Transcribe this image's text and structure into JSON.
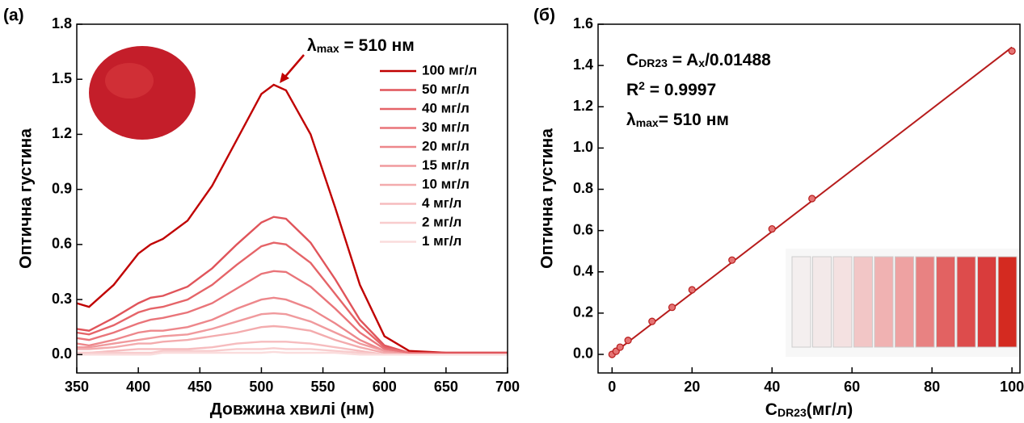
{
  "chart_data": [
    {
      "type": "line",
      "panel": "(a)",
      "xlabel": "Довжина хвилі (нм)",
      "ylabel": "Оптична густина",
      "x": [
        350,
        360,
        380,
        400,
        410,
        420,
        440,
        460,
        480,
        500,
        510,
        520,
        540,
        560,
        580,
        600,
        620,
        650,
        700
      ],
      "xlim": [
        350,
        700
      ],
      "xticks": [
        350,
        400,
        450,
        500,
        550,
        600,
        650,
        700
      ],
      "ylim": [
        -0.1,
        1.8
      ],
      "yticks": [
        {
          "value": 0,
          "label": "0.0"
        },
        0.3,
        0.6,
        0.9,
        1.2,
        1.5,
        1.8
      ],
      "annotation": [
        "λ",
        "max",
        " = 510 нм"
      ],
      "annotation_color": "#c00000",
      "series": [
        {
          "name": "100 мг/л",
          "color": "#c00000",
          "values": [
            0.28,
            0.26,
            0.38,
            0.55,
            0.6,
            0.63,
            0.73,
            0.92,
            1.17,
            1.42,
            1.47,
            1.44,
            1.2,
            0.8,
            0.38,
            0.1,
            0.02,
            0.01,
            0.01
          ]
        },
        {
          "name": "50 мг/л",
          "color": "#e0545a",
          "values": [
            0.14,
            0.13,
            0.2,
            0.28,
            0.31,
            0.32,
            0.37,
            0.47,
            0.6,
            0.72,
            0.75,
            0.74,
            0.61,
            0.41,
            0.19,
            0.05,
            0.01,
            0.01,
            0.01
          ]
        },
        {
          "name": "40 мг/л",
          "color": "#e56468",
          "values": [
            0.12,
            0.11,
            0.16,
            0.23,
            0.25,
            0.26,
            0.3,
            0.38,
            0.49,
            0.59,
            0.61,
            0.6,
            0.5,
            0.33,
            0.16,
            0.04,
            0.01,
            0,
            0
          ]
        },
        {
          "name": "30 мг/л",
          "color": "#e97479",
          "values": [
            0.09,
            0.08,
            0.12,
            0.17,
            0.19,
            0.2,
            0.23,
            0.28,
            0.36,
            0.44,
            0.455,
            0.45,
            0.37,
            0.25,
            0.12,
            0.03,
            0.01,
            0,
            0
          ]
        },
        {
          "name": "20 мг/л",
          "color": "#ed878b",
          "values": [
            0.06,
            0.05,
            0.08,
            0.12,
            0.13,
            0.13,
            0.15,
            0.19,
            0.25,
            0.3,
            0.31,
            0.3,
            0.25,
            0.17,
            0.08,
            0.02,
            0,
            0,
            0
          ]
        },
        {
          "name": "15 мг/л",
          "color": "#f09a9d",
          "values": [
            0.04,
            0.04,
            0.06,
            0.08,
            0.09,
            0.1,
            0.11,
            0.14,
            0.18,
            0.22,
            0.225,
            0.22,
            0.18,
            0.12,
            0.06,
            0.02,
            0,
            0,
            0
          ]
        },
        {
          "name": "10 мг/л",
          "color": "#f3abad",
          "values": [
            0.03,
            0.03,
            0.04,
            0.06,
            0.06,
            0.07,
            0.08,
            0.1,
            0.12,
            0.15,
            0.155,
            0.15,
            0.13,
            0.08,
            0.04,
            0.01,
            0,
            0,
            0
          ]
        },
        {
          "name": "4 мг/л",
          "color": "#f6bcbe",
          "values": [
            0.01,
            0.01,
            0.02,
            0.03,
            0.03,
            0.03,
            0.03,
            0.04,
            0.06,
            0.07,
            0.07,
            0.07,
            0.06,
            0.04,
            0.02,
            0,
            0,
            0,
            0
          ]
        },
        {
          "name": "2 мг/л",
          "color": "#f8cccd",
          "values": [
            0.01,
            0.01,
            0.01,
            0.01,
            0.01,
            0.02,
            0.02,
            0.02,
            0.03,
            0.03,
            0.035,
            0.03,
            0.03,
            0.02,
            0.01,
            0,
            0,
            0,
            0
          ]
        },
        {
          "name": "1 мг/л",
          "color": "#fadcdc",
          "values": [
            0,
            0,
            0,
            0,
            0,
            0.01,
            0.01,
            0.01,
            0.01,
            0.01,
            0.015,
            0.01,
            0.01,
            0.01,
            0,
            0,
            0,
            0,
            0
          ]
        }
      ]
    },
    {
      "type": "scatter",
      "panel": "(б)",
      "xlabel": [
        "C",
        "DR23",
        "(мг/л)"
      ],
      "ylabel": "Оптична густина",
      "x": [
        0,
        1,
        2,
        4,
        10,
        15,
        20,
        30,
        40,
        50,
        100
      ],
      "values": [
        0.0,
        0.015,
        0.035,
        0.068,
        0.16,
        0.228,
        0.313,
        0.457,
        0.608,
        0.755,
        1.47
      ],
      "color": "#e57373",
      "line_color": "#b71c1c",
      "fit": {
        "x": [
          0,
          100
        ],
        "values": [
          0,
          1.488
        ]
      },
      "annotations": [
        [
          "C",
          "DR23",
          " = A",
          "x",
          "/0.01488"
        ],
        [
          "R",
          "2",
          " = 0.9997"
        ],
        [
          "λ",
          "max",
          "= 510 нм"
        ]
      ],
      "xlim": [
        -3.5,
        102
      ],
      "xticks": [
        0,
        20,
        40,
        60,
        80,
        100
      ],
      "ylim": [
        -0.09,
        1.6
      ],
      "yticks": [
        {
          "value": 0,
          "label": "0.0"
        },
        0.2,
        0.4,
        0.6,
        0.8,
        {
          "value": 1,
          "label": "1.0"
        },
        1.2,
        1.4,
        1.6
      ]
    }
  ]
}
